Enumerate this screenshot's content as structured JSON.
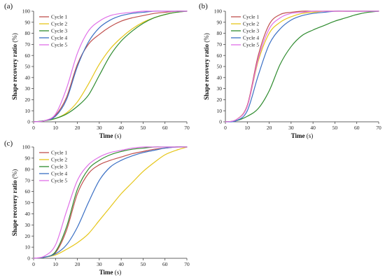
{
  "chart_data": [
    {
      "panel": "(a)",
      "type": "line",
      "xlabel": "Time",
      "xunit": "(s)",
      "ylabel": "Shape recovery ratio",
      "yunit": "(%)",
      "xlim": [
        0,
        70
      ],
      "ylim": [
        0,
        100
      ],
      "xticks": [
        0,
        10,
        20,
        30,
        40,
        50,
        60,
        70
      ],
      "yticks": [
        0,
        10,
        20,
        30,
        40,
        50,
        60,
        70,
        80,
        90,
        100
      ],
      "legend_position": "top-left",
      "series": [
        {
          "name": "Cycle 1",
          "color": "#c0504d",
          "x": [
            0,
            5,
            10,
            15,
            20,
            25,
            30,
            35,
            40,
            45,
            50,
            55,
            60,
            65,
            70
          ],
          "y": [
            0,
            1,
            6,
            22,
            52,
            70,
            79,
            86,
            91,
            94,
            96,
            98,
            99,
            100,
            100
          ]
        },
        {
          "name": "Cycle 2",
          "color": "#e6c619",
          "x": [
            0,
            5,
            10,
            15,
            20,
            25,
            30,
            35,
            40,
            45,
            50,
            55,
            60,
            65,
            70
          ],
          "y": [
            0,
            1,
            3,
            8,
            18,
            34,
            52,
            66,
            76,
            84,
            90,
            94,
            97,
            99,
            100
          ]
        },
        {
          "name": "Cycle 3",
          "color": "#2e8b2e",
          "x": [
            0,
            5,
            10,
            15,
            20,
            25,
            30,
            35,
            40,
            45,
            50,
            55,
            60,
            65,
            70
          ],
          "y": [
            0,
            1,
            3,
            7,
            14,
            24,
            42,
            60,
            73,
            82,
            89,
            94,
            97,
            99,
            100
          ]
        },
        {
          "name": "Cycle 4",
          "color": "#3a6fc4",
          "x": [
            0,
            5,
            10,
            15,
            20,
            25,
            30,
            35,
            40,
            45,
            50,
            55,
            60,
            65,
            70
          ],
          "y": [
            0,
            1,
            5,
            20,
            50,
            72,
            85,
            92,
            96,
            98,
            99,
            100,
            100,
            100,
            100
          ]
        },
        {
          "name": "Cycle 5",
          "color": "#e070e8",
          "x": [
            0,
            5,
            10,
            15,
            20,
            25,
            30,
            35,
            40,
            45,
            50,
            55,
            60,
            65,
            70
          ],
          "y": [
            0,
            1,
            7,
            30,
            62,
            82,
            91,
            96,
            98,
            99,
            100,
            100,
            100,
            100,
            100
          ]
        }
      ]
    },
    {
      "panel": "(b)",
      "type": "line",
      "xlabel": "Time",
      "xunit": "(s)",
      "ylabel": "Shape recovery ratio",
      "yunit": "(%)",
      "xlim": [
        0,
        70
      ],
      "ylim": [
        0,
        100
      ],
      "xticks": [
        0,
        10,
        20,
        30,
        40,
        50,
        60,
        70
      ],
      "yticks": [
        0,
        10,
        20,
        30,
        40,
        50,
        60,
        70,
        80,
        90,
        100
      ],
      "legend_position": "top-left",
      "series": [
        {
          "name": "Cycle 1",
          "color": "#c0504d",
          "x": [
            0,
            5,
            10,
            15,
            20,
            25,
            30,
            35,
            40,
            45,
            50,
            55,
            60,
            65,
            70
          ],
          "y": [
            0,
            2,
            15,
            60,
            88,
            97,
            99,
            100,
            100,
            100,
            100,
            100,
            100,
            100,
            100
          ]
        },
        {
          "name": "Cycle 2",
          "color": "#e6c619",
          "x": [
            0,
            5,
            10,
            15,
            20,
            25,
            30,
            35,
            40,
            45,
            50,
            55,
            60,
            65,
            70
          ],
          "y": [
            0,
            2,
            14,
            55,
            80,
            90,
            95,
            98,
            99,
            100,
            100,
            100,
            100,
            100,
            100
          ]
        },
        {
          "name": "Cycle 3",
          "color": "#2e8b2e",
          "x": [
            0,
            5,
            10,
            15,
            20,
            25,
            30,
            35,
            40,
            45,
            50,
            55,
            60,
            65,
            70
          ],
          "y": [
            0,
            1,
            5,
            12,
            28,
            52,
            68,
            78,
            83,
            87,
            91,
            94,
            97,
            99,
            100
          ]
        },
        {
          "name": "Cycle 4",
          "color": "#3a6fc4",
          "x": [
            0,
            5,
            10,
            15,
            20,
            25,
            30,
            35,
            40,
            45,
            50,
            55,
            60,
            65,
            70
          ],
          "y": [
            0,
            1,
            10,
            42,
            70,
            84,
            92,
            96,
            98,
            99,
            100,
            100,
            100,
            100,
            100
          ]
        },
        {
          "name": "Cycle 5",
          "color": "#e070e8",
          "x": [
            0,
            5,
            10,
            15,
            20,
            25,
            30,
            35,
            40,
            45,
            50,
            55,
            60,
            65,
            70
          ],
          "y": [
            0,
            2,
            14,
            57,
            84,
            94,
            98,
            99,
            100,
            100,
            100,
            100,
            100,
            100,
            100
          ]
        }
      ]
    },
    {
      "panel": "(c)",
      "type": "line",
      "xlabel": "Time",
      "xunit": "(s)",
      "ylabel": "Shape recovery ratio",
      "yunit": "(%)",
      "xlim": [
        0,
        70
      ],
      "ylim": [
        0,
        100
      ],
      "xticks": [
        0,
        10,
        20,
        30,
        40,
        50,
        60,
        70
      ],
      "yticks": [
        0,
        10,
        20,
        30,
        40,
        50,
        60,
        70,
        80,
        90,
        100
      ],
      "legend_position": "top-left",
      "series": [
        {
          "name": "Cycle 1",
          "color": "#c0504d",
          "x": [
            0,
            5,
            10,
            15,
            20,
            25,
            30,
            35,
            40,
            45,
            50,
            55,
            60,
            65,
            70
          ],
          "y": [
            0,
            1,
            5,
            25,
            58,
            76,
            84,
            88,
            91,
            94,
            96,
            98,
            99,
            100,
            100
          ]
        },
        {
          "name": "Cycle 2",
          "color": "#e6c619",
          "x": [
            0,
            5,
            10,
            15,
            20,
            25,
            30,
            35,
            40,
            45,
            50,
            55,
            60,
            65,
            70
          ],
          "y": [
            0,
            1,
            3,
            8,
            14,
            22,
            34,
            46,
            58,
            68,
            78,
            86,
            93,
            97,
            100
          ]
        },
        {
          "name": "Cycle 3",
          "color": "#2e8b2e",
          "x": [
            0,
            5,
            10,
            15,
            20,
            25,
            30,
            35,
            40,
            45,
            50,
            55,
            60,
            65,
            70
          ],
          "y": [
            0,
            1,
            6,
            28,
            62,
            80,
            88,
            93,
            96,
            98,
            99,
            100,
            100,
            100,
            100
          ]
        },
        {
          "name": "Cycle 4",
          "color": "#3a6fc4",
          "x": [
            0,
            5,
            10,
            15,
            20,
            25,
            30,
            35,
            40,
            45,
            50,
            55,
            60,
            65,
            70
          ],
          "y": [
            0,
            1,
            4,
            12,
            28,
            50,
            70,
            82,
            88,
            92,
            95,
            97,
            99,
            100,
            100
          ]
        },
        {
          "name": "Cycle 5",
          "color": "#e070e8",
          "x": [
            0,
            5,
            10,
            15,
            20,
            25,
            30,
            35,
            40,
            45,
            50,
            55,
            60,
            65,
            70
          ],
          "y": [
            0,
            2,
            12,
            42,
            70,
            84,
            91,
            95,
            97,
            99,
            100,
            100,
            100,
            100,
            100
          ]
        }
      ]
    }
  ]
}
